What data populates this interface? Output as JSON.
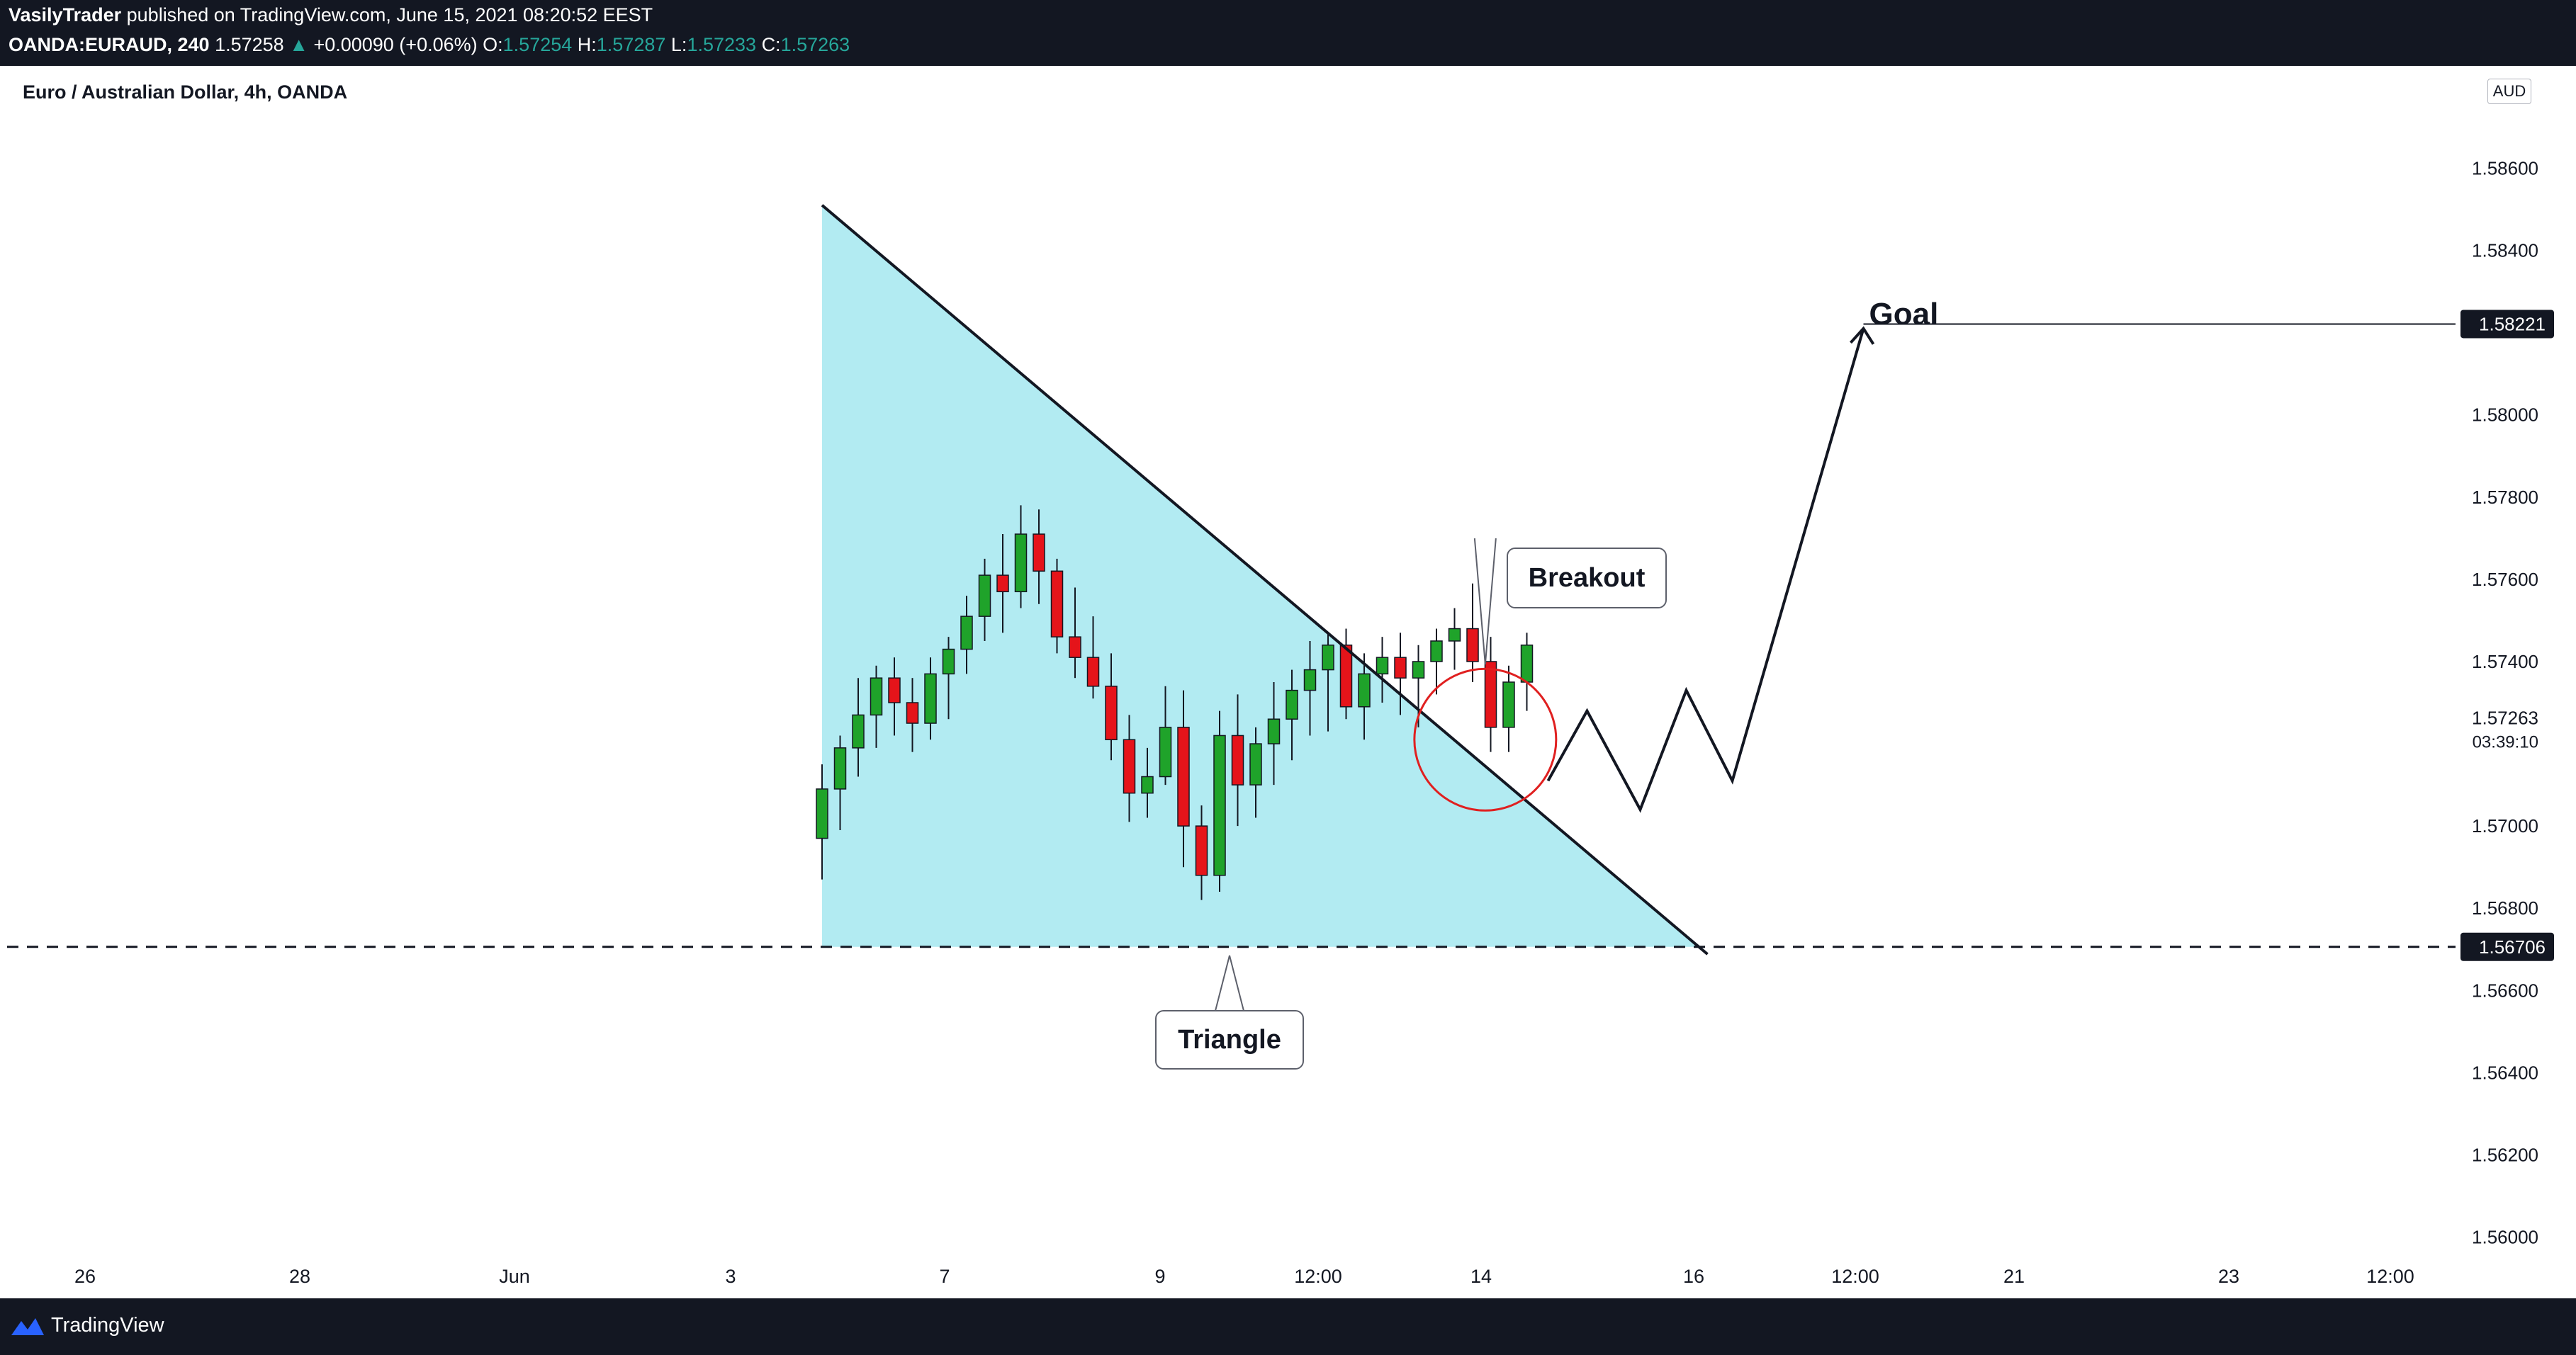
{
  "header": {
    "author": "VasilyTrader",
    "published": "published on TradingView.com, June 15, 2021 08:20:52 EEST",
    "symbol": "OANDA:EURAUD, 240",
    "last_price": "1.57258",
    "change": "+0.00090 (+0.06%)",
    "o_label": "O:",
    "o_value": "1.57254",
    "h_label": "H:",
    "h_value": "1.57287",
    "l_label": "L:",
    "l_value": "1.57233",
    "c_label": "C:",
    "c_value": "1.57263"
  },
  "chart_title": "Euro / Australian Dollar, 4h, OANDA",
  "currency_badge": "AUD",
  "footer": {
    "brand": "TradingView"
  },
  "annotations": {
    "breakout": "Breakout",
    "triangle": "Triangle",
    "goal": "Goal",
    "countdown": "03:39:10"
  },
  "colors": {
    "up": "#1fa32a",
    "down": "#e5141a",
    "triangle_fill": "#b2ebf2",
    "circle": "#e02020",
    "background": "#ffffff",
    "header_bg": "#131722"
  },
  "chart_data": {
    "type": "candlestick",
    "title": "Euro / Australian Dollar, 4h, OANDA",
    "y_axis": {
      "ticks": [
        "1.56000",
        "1.56200",
        "1.56400",
        "1.56600",
        "1.56800",
        "1.57000",
        "1.57263",
        "1.57400",
        "1.57600",
        "1.57800",
        "1.58000",
        "1.58400",
        "1.58600"
      ],
      "ylim": [
        1.5592,
        1.5878
      ]
    },
    "price_labels": [
      "1.58221",
      "1.56706"
    ],
    "current_price": "1.57263",
    "x_axis": {
      "ticks": [
        "26",
        "28",
        "Jun",
        "3",
        "7",
        "9",
        "12:00",
        "14",
        "16",
        "12:00",
        "21",
        "23",
        "12:00"
      ]
    },
    "levels": {
      "support": 1.56706,
      "goal": 1.58221
    },
    "trendline": [
      [
        0,
        1.5851
      ],
      [
        39,
        1.5706
      ]
    ],
    "triangle": {
      "from_index": 0,
      "top": 1.5851,
      "base": 1.56706
    },
    "projection_path": [
      1.5711,
      1.5728,
      1.5704,
      1.5733,
      1.5711,
      1.5821
    ],
    "candles": [
      [
        1.5697,
        1.5715,
        1.5687,
        1.5709
      ],
      [
        1.5709,
        1.5722,
        1.5699,
        1.5719
      ],
      [
        1.5719,
        1.5736,
        1.5712,
        1.5727
      ],
      [
        1.5727,
        1.5739,
        1.5719,
        1.5736
      ],
      [
        1.5736,
        1.5741,
        1.5722,
        1.573
      ],
      [
        1.573,
        1.5736,
        1.5718,
        1.5725
      ],
      [
        1.5725,
        1.5741,
        1.5721,
        1.5737
      ],
      [
        1.5737,
        1.5746,
        1.5726,
        1.5743
      ],
      [
        1.5743,
        1.5756,
        1.5737,
        1.5751
      ],
      [
        1.5751,
        1.5765,
        1.5745,
        1.5761
      ],
      [
        1.5761,
        1.5771,
        1.5747,
        1.5757
      ],
      [
        1.5757,
        1.5778,
        1.5753,
        1.5771
      ],
      [
        1.5771,
        1.5777,
        1.5754,
        1.5762
      ],
      [
        1.5762,
        1.5765,
        1.5742,
        1.5746
      ],
      [
        1.5746,
        1.5758,
        1.5736,
        1.5741
      ],
      [
        1.5741,
        1.5751,
        1.5731,
        1.5734
      ],
      [
        1.5734,
        1.5742,
        1.5716,
        1.5721
      ],
      [
        1.5721,
        1.5727,
        1.5701,
        1.5708
      ],
      [
        1.5708,
        1.5719,
        1.5702,
        1.5712
      ],
      [
        1.5712,
        1.5734,
        1.571,
        1.5724
      ],
      [
        1.5724,
        1.5733,
        1.569,
        1.57
      ],
      [
        1.57,
        1.5705,
        1.5682,
        1.5688
      ],
      [
        1.5688,
        1.5728,
        1.5684,
        1.5722
      ],
      [
        1.5722,
        1.5732,
        1.57,
        1.571
      ],
      [
        1.571,
        1.5724,
        1.5702,
        1.572
      ],
      [
        1.572,
        1.5735,
        1.571,
        1.5726
      ],
      [
        1.5726,
        1.5738,
        1.5716,
        1.5733
      ],
      [
        1.5733,
        1.5745,
        1.5722,
        1.5738
      ],
      [
        1.5738,
        1.5747,
        1.5723,
        1.5744
      ],
      [
        1.5744,
        1.5748,
        1.5726,
        1.5729
      ],
      [
        1.5729,
        1.5742,
        1.5721,
        1.5737
      ],
      [
        1.5737,
        1.5746,
        1.573,
        1.5741
      ],
      [
        1.5741,
        1.5747,
        1.5727,
        1.5736
      ],
      [
        1.5736,
        1.5744,
        1.5724,
        1.574
      ],
      [
        1.574,
        1.5748,
        1.5732,
        1.5745
      ],
      [
        1.5745,
        1.5753,
        1.5738,
        1.5748
      ],
      [
        1.5748,
        1.5759,
        1.5735,
        1.574
      ],
      [
        1.574,
        1.5746,
        1.5718,
        1.5724
      ],
      [
        1.5724,
        1.5739,
        1.5718,
        1.5735
      ],
      [
        1.5735,
        1.5747,
        1.5728,
        1.5744
      ]
    ]
  }
}
